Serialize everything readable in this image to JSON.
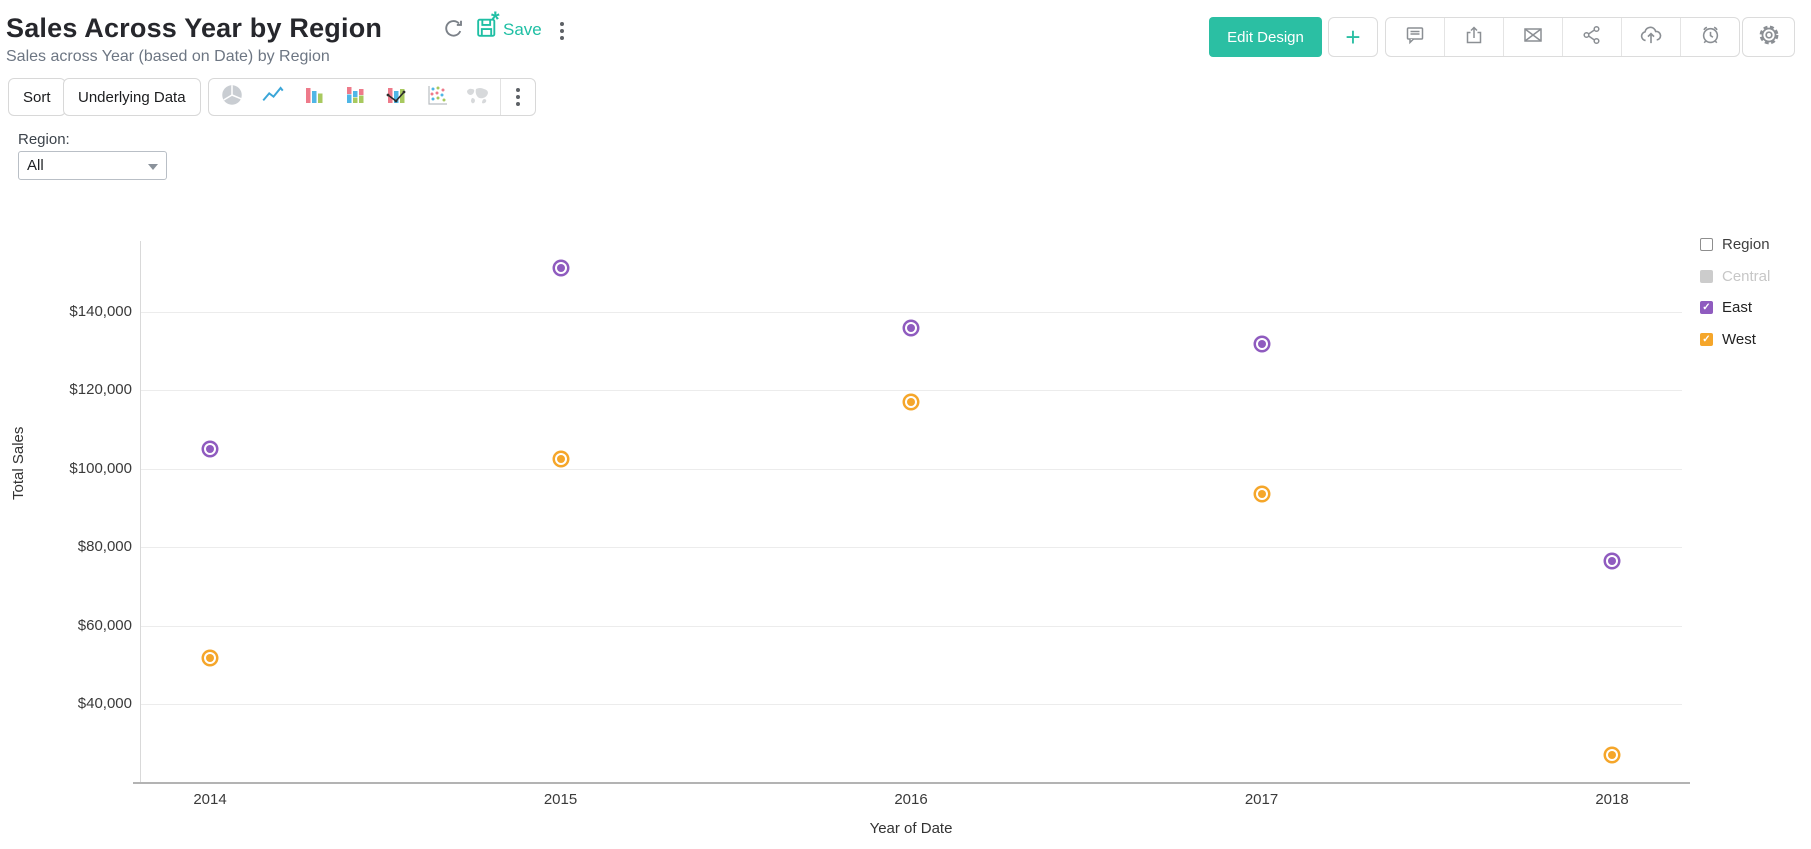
{
  "header": {
    "title": "Sales Across Year by Region",
    "subtitle": "Sales across Year (based on Date) by Region",
    "save_label": "Save",
    "edit_design_label": "Edit Design",
    "plus_label": "+",
    "accent_color": "#2bbfa3",
    "action_icons": [
      "refresh-icon",
      "save-icon",
      "kebab-icon",
      "comment-icon",
      "export-icon",
      "email-icon",
      "share-icon",
      "publish-icon",
      "alert-icon",
      "settings-icon"
    ]
  },
  "toolbar": {
    "sort_label": "Sort",
    "underlying_data_label": "Underlying Data",
    "chart_type_icons": [
      "pie-chart-icon",
      "line-chart-icon",
      "bar-chart-icon",
      "stacked-bar-icon",
      "combo-chart-icon",
      "scatter-chart-icon",
      "map-chart-icon"
    ]
  },
  "filter": {
    "label": "Region:",
    "value": "All"
  },
  "legend": {
    "title": "Region",
    "items": [
      {
        "label": "Central",
        "state": "disabled",
        "color": "#cccccc"
      },
      {
        "label": "East",
        "state": "checked",
        "color": "#8f5bbf"
      },
      {
        "label": "West",
        "state": "checked",
        "color": "#f5a62a"
      }
    ]
  },
  "chart_data": {
    "type": "scatter",
    "title": "Sales Across Year by Region",
    "categories": [
      "2014",
      "2015",
      "2016",
      "2017",
      "2018"
    ],
    "series": [
      {
        "name": "East",
        "color": "#8f5bbf",
        "values": [
          105000,
          151200,
          135900,
          131700,
          76600
        ]
      },
      {
        "name": "West",
        "color": "#f5a62a",
        "values": [
          51800,
          102500,
          117000,
          93500,
          27200
        ]
      }
    ],
    "xlabel": "Year of Date",
    "ylabel": "Total Sales",
    "yticks": [
      40000,
      60000,
      80000,
      100000,
      120000,
      140000
    ],
    "ytick_labels": [
      "$40,000",
      "$60,000",
      "$80,000",
      "$100,000",
      "$120,000",
      "$140,000"
    ],
    "ylim": [
      20000,
      158000
    ],
    "grid": true,
    "legend_position": "right"
  }
}
